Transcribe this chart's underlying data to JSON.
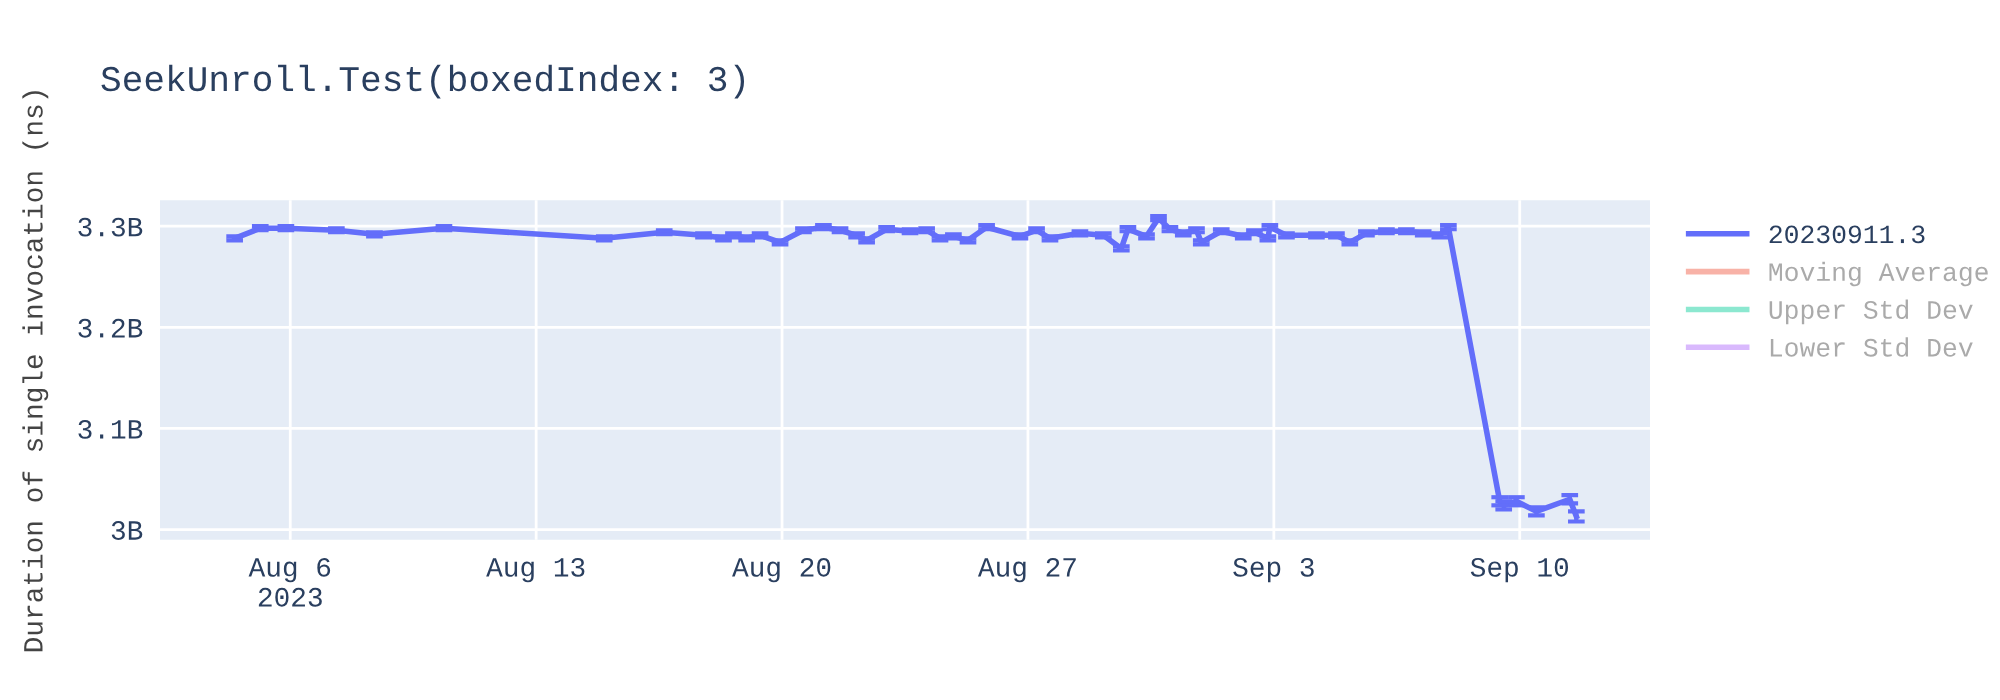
{
  "chart_data": {
    "type": "line",
    "title": "SeekUnroll.Test(boxedIndex: 3)",
    "ylabel": "Duration of single invocation (ns)",
    "x": [
      "2023-08-04T10:00",
      "2023-08-05T03:30",
      "2023-08-05T21:00",
      "2023-08-07T07:30",
      "2023-08-08T09:30",
      "2023-08-10T09:00",
      "2023-08-14T22:30",
      "2023-08-16T15:30",
      "2023-08-17T18:20",
      "2023-08-18T08:00",
      "2023-08-18T14:48",
      "2023-08-18T23:50",
      "2023-08-19T09:00",
      "2023-08-19T22:38",
      "2023-08-20T14:37",
      "2023-08-21T04:16",
      "2023-08-21T15:37",
      "2023-08-22T02:57",
      "2023-08-22T09:47",
      "2023-08-22T23:27",
      "2023-08-23T15:26",
      "2023-08-24T02:46",
      "2023-08-24T11:55",
      "2023-08-24T21:04",
      "2023-08-25T07:02",
      "2023-08-25T19:45",
      "2023-08-26T18:33",
      "2023-08-27T05:53",
      "2023-08-27T15:03",
      "2023-08-28T11:31",
      "2023-08-29T03:30",
      "2023-08-29T15:48",
      "2023-08-29T20:18",
      "2023-08-30T09:00",
      "2023-08-30T17:12",
      "2023-08-31T01:00",
      "2023-08-31T10:08",
      "2023-08-31T19:09",
      "2023-08-31T22:25",
      "2023-09-01T12:04",
      "2023-09-02T03:06",
      "2023-09-02T10:45",
      "2023-09-02T19:55",
      "2023-09-02T21:17",
      "2023-09-03T08:37",
      "2023-09-04T05:06",
      "2023-09-04T18:46",
      "2023-09-05T03:55",
      "2023-09-05T15:15",
      "2023-09-06T04:55",
      "2023-09-06T18:34",
      "2023-09-07T06:03",
      "2023-09-07T17:22",
      "2023-09-07T23:15",
      "2023-09-09T10:19",
      "2023-09-09T13:03",
      "2023-09-09T21:43",
      "2023-09-10T11:23",
      "2023-09-11T10:11",
      "2023-09-11T14:41"
    ],
    "series": [
      {
        "name": "20230911.3",
        "color": "#636efa",
        "values": [
          3288000000,
          3298000000,
          3298000000,
          3296000000,
          3292000000,
          3298000000,
          3288000000,
          3294000000,
          3291000000,
          3288000000,
          3291000000,
          3288000000,
          3291000000,
          3284000000,
          3296000000,
          3299000000,
          3296000000,
          3291000000,
          3286000000,
          3297000000,
          3295000000,
          3296000000,
          3288000000,
          3290000000,
          3286000000,
          3299000000,
          3290000000,
          3296000000,
          3288000000,
          3293000000,
          3291000000,
          3278000000,
          3297000000,
          3290000000,
          3308000000,
          3297000000,
          3293000000,
          3296000000,
          3284000000,
          3295000000,
          3290000000,
          3294000000,
          3288000000,
          3299000000,
          3291000000,
          3291000000,
          3291000000,
          3284000000,
          3293000000,
          3295000000,
          3295000000,
          3293000000,
          3291000000,
          3299000000,
          3028000000,
          3024000000,
          3028000000,
          3018000000,
          3030000000,
          3013000000
        ],
        "errors": [
          2000000,
          2000000,
          2000000,
          2000000,
          2000000,
          2000000,
          2000000,
          2000000,
          2000000,
          2000000,
          2000000,
          2000000,
          2000000,
          2000000,
          2000000,
          2000000,
          2000000,
          2000000,
          2000000,
          2000000,
          2000000,
          2000000,
          2000000,
          2000000,
          2000000,
          2000000,
          2000000,
          2000000,
          2000000,
          2000000,
          2000000,
          2000000,
          2000000,
          2000000,
          2000000,
          2000000,
          2000000,
          2000000,
          2000000,
          2000000,
          2000000,
          2000000,
          2000000,
          2000000,
          2000000,
          2000000,
          2000000,
          2000000,
          2000000,
          2000000,
          2000000,
          2000000,
          2000000,
          2000000,
          4000000,
          4000000,
          4000000,
          4000000,
          4000000,
          5000000
        ]
      },
      {
        "name": "Moving Average",
        "color": "#ef553b",
        "values": [
          null,
          null,
          null,
          null,
          null,
          null,
          null,
          null,
          null,
          null,
          null,
          null,
          null,
          null,
          null,
          null,
          null,
          null,
          null,
          null,
          null,
          null,
          null,
          null,
          null,
          null,
          null,
          null,
          null,
          null,
          null,
          null,
          null,
          null,
          null,
          null,
          null,
          null,
          null,
          null,
          null,
          null,
          null,
          null,
          null,
          null,
          null,
          null,
          null,
          null,
          null,
          null,
          null,
          null,
          null,
          null,
          null,
          null,
          null,
          null
        ]
      },
      {
        "name": "Upper Std Dev",
        "color": "#00cc96",
        "values": [
          null,
          null,
          null,
          null,
          null,
          null,
          null,
          null,
          null,
          null,
          null,
          null,
          null,
          null,
          null,
          null,
          null,
          null,
          null,
          null,
          null,
          null,
          null,
          null,
          null,
          null,
          null,
          null,
          null,
          null,
          null,
          null,
          null,
          null,
          null,
          null,
          null,
          null,
          null,
          null,
          null,
          null,
          null,
          null,
          null,
          null,
          null,
          null,
          null,
          null,
          null,
          null,
          null,
          null,
          null,
          null,
          null,
          null,
          null,
          null
        ]
      },
      {
        "name": "Lower Std Dev",
        "color": "#ab63fa",
        "values": [
          null,
          null,
          null,
          null,
          null,
          null,
          null,
          null,
          null,
          null,
          null,
          null,
          null,
          null,
          null,
          null,
          null,
          null,
          null,
          null,
          null,
          null,
          null,
          null,
          null,
          null,
          null,
          null,
          null,
          null,
          null,
          null,
          null,
          null,
          null,
          null,
          null,
          null,
          null,
          null,
          null,
          null,
          null,
          null,
          null,
          null,
          null,
          null,
          null,
          null,
          null,
          null,
          null,
          null,
          null,
          null,
          null,
          null,
          null,
          null
        ]
      }
    ],
    "xlim": [
      "2023-08-02T07:00",
      "2023-09-13T17:00"
    ],
    "xticks": [
      {
        "value": "2023-08-06",
        "label": "Aug 6\n2023"
      },
      {
        "value": "2023-08-13",
        "label": "Aug 13"
      },
      {
        "value": "2023-08-20",
        "label": "Aug 20"
      },
      {
        "value": "2023-08-27",
        "label": "Aug 27"
      },
      {
        "value": "2023-09-03",
        "label": "Sep 3"
      },
      {
        "value": "2023-09-10",
        "label": "Sep 10"
      }
    ],
    "ylim": [
      2990000000,
      3325700000
    ],
    "yticks": [
      {
        "value": 3000000000,
        "label": "3B"
      },
      {
        "value": 3100000000,
        "label": "3.1B"
      },
      {
        "value": 3200000000,
        "label": "3.2B"
      },
      {
        "value": 3300000000,
        "label": "3.3B"
      }
    ],
    "grid": true,
    "legend": "right",
    "marker": "none",
    "line_style": "solid"
  }
}
